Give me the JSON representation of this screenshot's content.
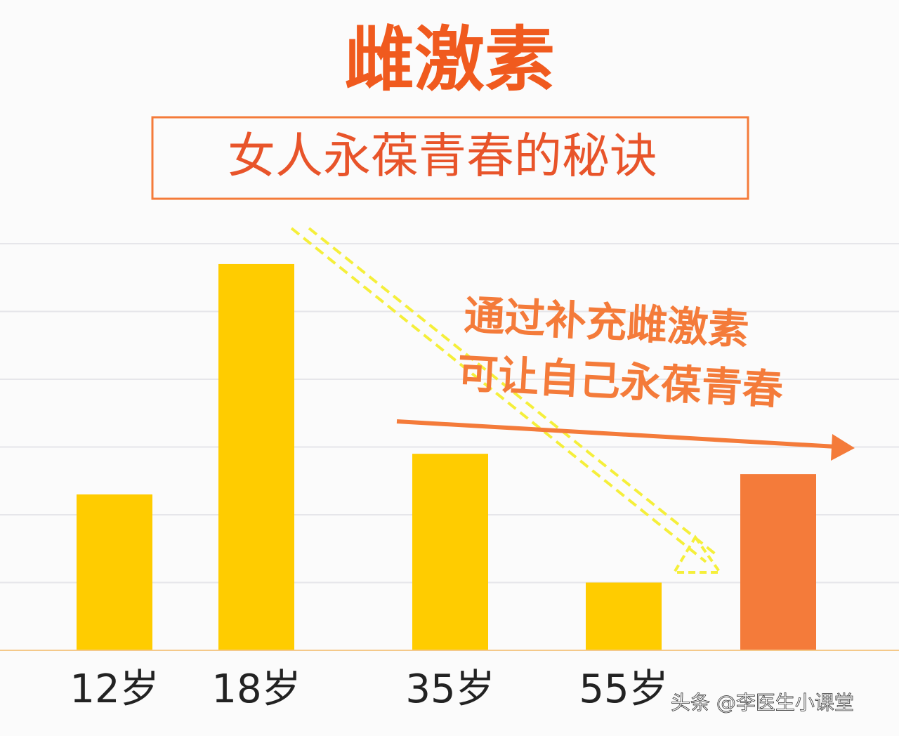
{
  "chart_data": {
    "type": "bar",
    "title": "雌激素",
    "subtitle": "女人永葆青春的秘诀",
    "annotations": [
      "通过补充雌激素",
      "可让自己永葆青春"
    ],
    "watermark": "头条 @李医生小课堂",
    "categories": [
      "12岁",
      "18岁",
      "35岁",
      "55岁",
      null
    ],
    "values": [
      2.3,
      5.7,
      2.9,
      1.0,
      2.6
    ],
    "colors": [
      "#ffcc00",
      "#ffcc00",
      "#ffcc00",
      "#ffcc00",
      "#f47b3a"
    ],
    "ylim": [
      0,
      6
    ],
    "grid": true
  }
}
